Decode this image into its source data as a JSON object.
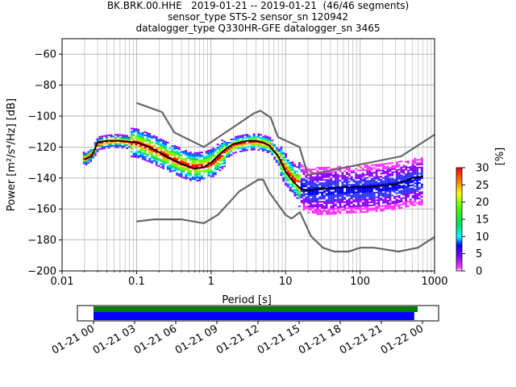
{
  "title": {
    "line1": "BK.BRK.00.HHE   2019-01-21 -- 2019-01-21  (46/46 segments)",
    "line2": "sensor_type STS-2 sensor_sn 120942",
    "line3": "datalogger_type Q330HR-GFE datalogger_sn 3465"
  },
  "chart_data": [
    {
      "type": "heatmap",
      "name": "PPSD",
      "xlabel": "Period [s]",
      "ylabel": "Power [m²/s⁴/Hz] [dB]",
      "xscale": "log",
      "xlim": [
        0.01,
        1000
      ],
      "ylim": [
        -200,
        -50
      ],
      "x_ticks": [
        "0.01",
        "0.1",
        "1",
        "10",
        "100",
        "1000"
      ],
      "y_ticks": [
        "−200",
        "−180",
        "−160",
        "−140",
        "−120",
        "−100",
        "−80",
        "−60"
      ],
      "grid": true,
      "colorbar": {
        "label": "[%]",
        "range": [
          0,
          30
        ],
        "ticks": [
          "0",
          "5",
          "10",
          "15",
          "20",
          "25",
          "30"
        ]
      },
      "noise_model_high": {
        "x": [
          0.1,
          0.22,
          0.32,
          0.8,
          3.8,
          4.6,
          6.3,
          7.9,
          15.4,
          20,
          354.8,
          1000
        ],
        "y": [
          -91.5,
          -97.4,
          -110.5,
          -120,
          -98,
          -96.5,
          -101,
          -113.5,
          -120,
          -138,
          -126,
          -112
        ]
      },
      "noise_model_low": {
        "x": [
          0.1,
          0.17,
          0.4,
          0.8,
          1.24,
          2.4,
          4.3,
          5,
          6,
          10,
          12,
          15.6,
          21.9,
          31.6,
          45,
          70,
          101,
          154,
          328,
          600,
          1000
        ],
        "y": [
          -168,
          -166.7,
          -166.7,
          -169.2,
          -163.7,
          -148.6,
          -141.1,
          -141.1,
          -149,
          -163.8,
          -166.2,
          -162.1,
          -177.5,
          -185,
          -187.5,
          -187.5,
          -185,
          -185,
          -187.5,
          -185,
          -178
        ]
      },
      "mean_curve": {
        "x": [
          0.02,
          0.025,
          0.03,
          0.04,
          0.06,
          0.1,
          0.15,
          0.25,
          0.4,
          0.6,
          0.8,
          1,
          1.5,
          2,
          3,
          4,
          5,
          6,
          8,
          10,
          13,
          16,
          20,
          30,
          50,
          80,
          120,
          200,
          300,
          400,
          500,
          700
        ],
        "y": [
          -128,
          -126,
          -117,
          -116,
          -116,
          -117,
          -120,
          -126,
          -131,
          -134,
          -133,
          -130,
          -122,
          -118,
          -116,
          -116,
          -117,
          -119,
          -126,
          -136,
          -143,
          -147,
          -148,
          -147,
          -146,
          -146,
          -146,
          -145,
          -144,
          -142,
          -140,
          -139
        ]
      },
      "spread_curve": {
        "x": [
          0.02,
          0.03,
          0.05,
          0.1,
          0.2,
          0.5,
          1,
          2,
          4,
          6,
          10,
          20,
          40,
          100,
          200,
          400,
          700
        ],
        "y": [
          -127,
          -118,
          -116,
          -118,
          -124,
          -132,
          -131,
          -119,
          -117,
          -119,
          -135,
          -149,
          -150,
          -148,
          -147,
          -145,
          -145
        ]
      }
    },
    {
      "type": "timeline",
      "name": "data coverage",
      "x_ticks": [
        "01-21 00",
        "01-21 03",
        "01-21 06",
        "01-21 09",
        "01-21 12",
        "01-21 15",
        "01-21 18",
        "01-21 21",
        "01-22 00"
      ],
      "series": [
        {
          "start_hour": 0,
          "end_hour": 23.65,
          "color": "#008000"
        },
        {
          "start_hour": 0,
          "end_hour": 23.4,
          "color": "#0000ff"
        }
      ]
    }
  ],
  "colors": {
    "noise_model": "#666666",
    "mean_curve": "#000000",
    "grid": "#b0b0b0"
  }
}
